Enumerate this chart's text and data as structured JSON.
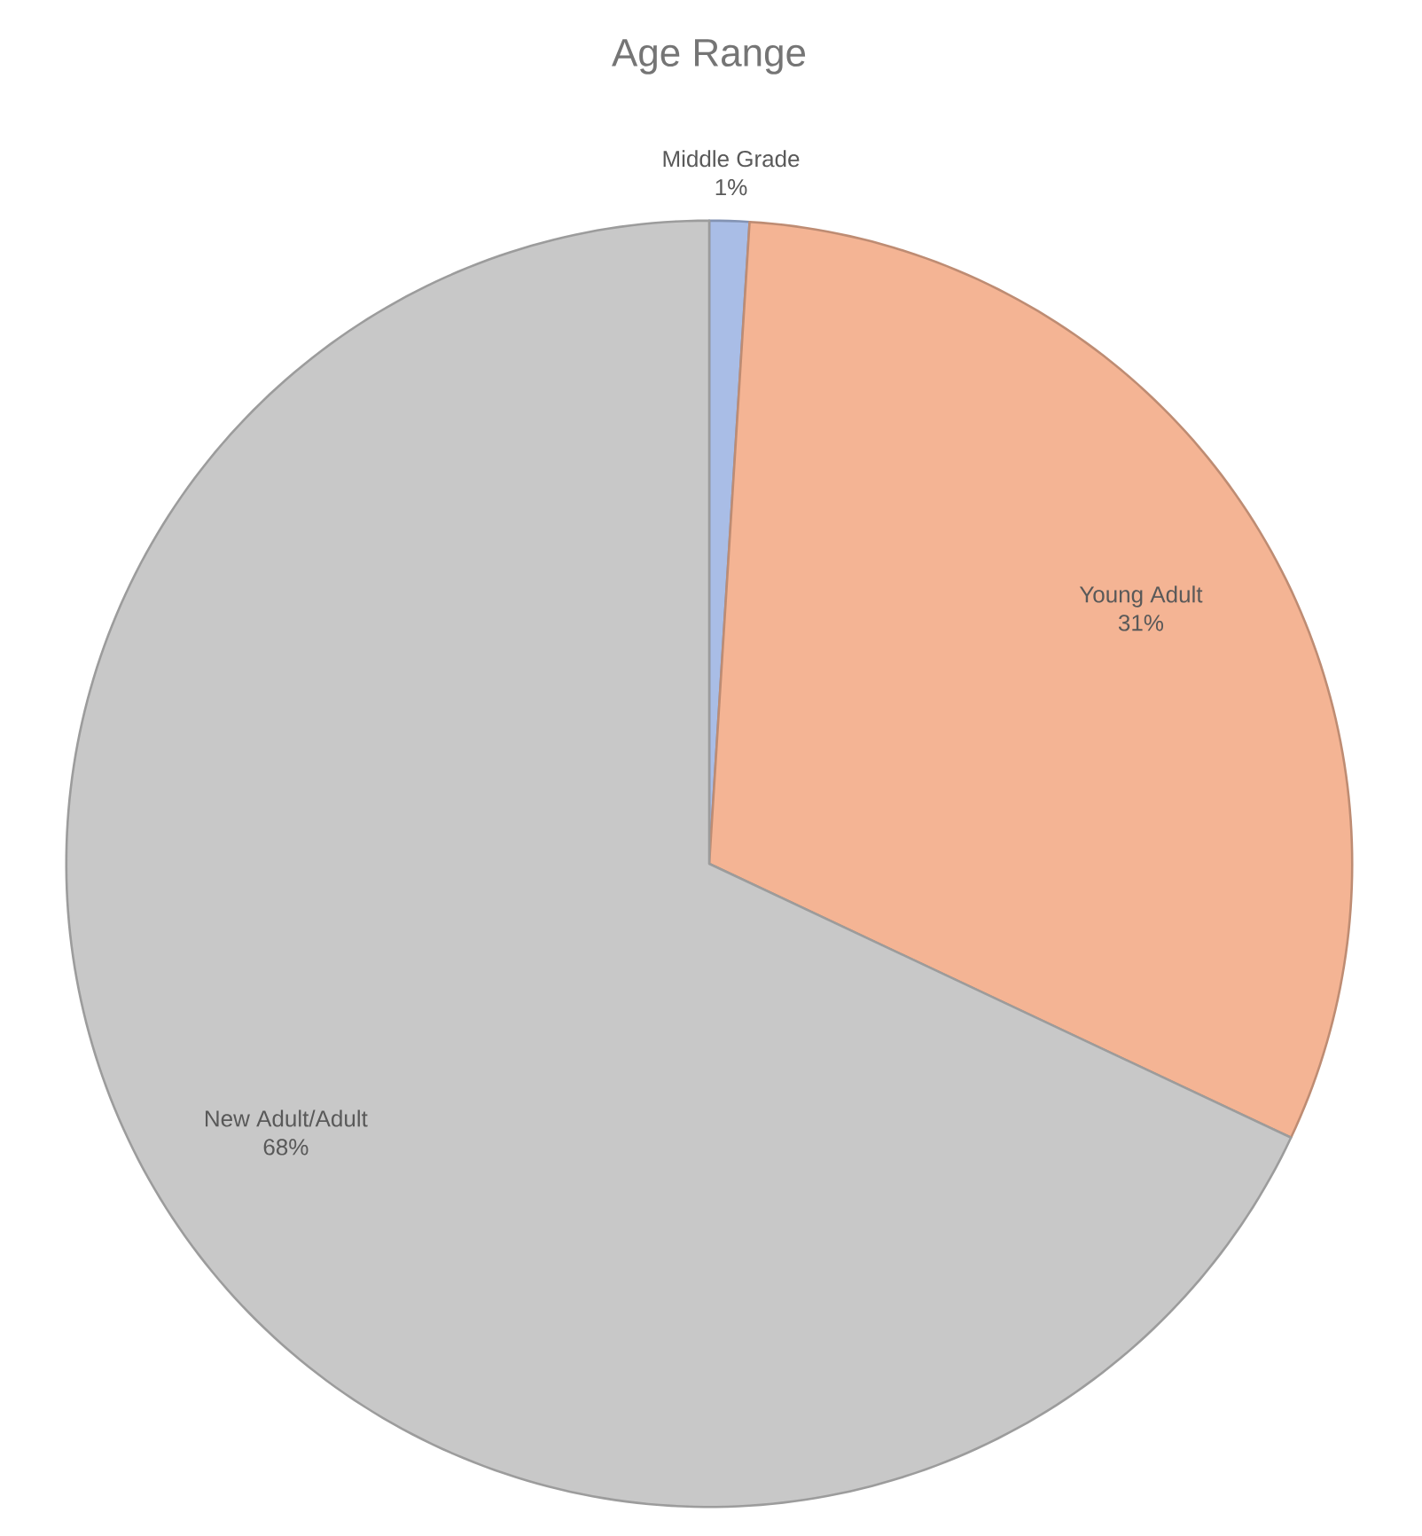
{
  "chart_data": {
    "type": "pie",
    "title": "Age Range",
    "categories": [
      "Middle Grade",
      "Young Adult",
      "New Adult/Adult"
    ],
    "values": [
      1,
      31,
      68
    ],
    "value_labels": [
      "1%",
      "31%",
      "68%"
    ],
    "colors": [
      "#a9bde6",
      "#f4b494",
      "#c8c8c8"
    ]
  }
}
